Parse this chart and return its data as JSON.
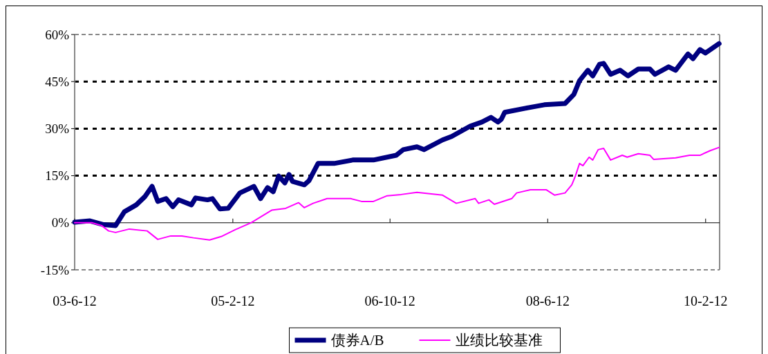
{
  "chart_data": {
    "type": "line",
    "xlim": [
      "2003-06-12",
      "2010-04-07"
    ],
    "xticks": [
      {
        "value": "2003-06-12",
        "label": "03-6-12"
      },
      {
        "value": "2005-02-12",
        "label": "05-2-12"
      },
      {
        "value": "2006-10-12",
        "label": "06-10-12"
      },
      {
        "value": "2008-06-12",
        "label": "08-6-12"
      },
      {
        "value": "2010-02-12",
        "label": "10-2-12"
      }
    ],
    "ylim": [
      -15,
      60
    ],
    "yticks": [
      {
        "value": -15,
        "label": "-15%"
      },
      {
        "value": 0,
        "label": "0%"
      },
      {
        "value": 15,
        "label": "15%"
      },
      {
        "value": 30,
        "label": "30%"
      },
      {
        "value": 45,
        "label": "45%"
      },
      {
        "value": 60,
        "label": "60%"
      }
    ],
    "grid": "y",
    "legend": "bottom",
    "line_style": "solid",
    "marker": "none",
    "series": [
      {
        "name": "债券A/B",
        "color": "#000080",
        "x": [
          "2003-06-12",
          "2003-08-10",
          "2003-10-02",
          "2003-11-17",
          "2003-12-21",
          "2004-02-05",
          "2004-03-10",
          "2004-04-06",
          "2004-04-28",
          "2004-05-30",
          "2004-06-25",
          "2004-07-17",
          "2004-09-05",
          "2004-09-21",
          "2004-11-06",
          "2004-11-25",
          "2004-12-24",
          "2005-01-25",
          "2005-03-11",
          "2005-05-04",
          "2005-05-30",
          "2005-06-26",
          "2005-07-18",
          "2005-08-08",
          "2005-09-01",
          "2005-09-17",
          "2005-09-30",
          "2005-11-15",
          "2005-12-03",
          "2006-01-07",
          "2006-03-10",
          "2006-05-21",
          "2006-08-09",
          "2006-11-05",
          "2006-12-02",
          "2007-01-24",
          "2007-02-20",
          "2007-05-03",
          "2007-06-07",
          "2007-08-18",
          "2007-10-02",
          "2007-11-06",
          "2007-12-03",
          "2007-12-16",
          "2007-12-29",
          "2008-03-18",
          "2008-05-30",
          "2008-08-18",
          "2008-09-21",
          "2008-10-13",
          "2008-11-14",
          "2008-12-03",
          "2008-12-29",
          "2009-01-14",
          "2009-02-10",
          "2009-03-19",
          "2009-04-18",
          "2009-05-28",
          "2009-07-12",
          "2009-07-31",
          "2009-09-22",
          "2009-10-19",
          "2009-12-06",
          "2009-12-25",
          "2010-01-21",
          "2010-02-11",
          "2010-04-05"
        ],
        "values": [
          0.2,
          0.6,
          -0.6,
          -0.9,
          3.5,
          5.7,
          8.4,
          11.6,
          6.8,
          7.7,
          5.1,
          7.3,
          5.7,
          7.9,
          7.3,
          7.7,
          4.4,
          4.6,
          9.5,
          11.6,
          7.7,
          11.2,
          9.9,
          14.9,
          12.7,
          15.4,
          13.2,
          12.1,
          13.4,
          18.9,
          18.9,
          20,
          20,
          21.5,
          23.3,
          24.2,
          23.3,
          26.4,
          27.5,
          30.8,
          32.1,
          33.6,
          32.1,
          33,
          35.2,
          36.5,
          37.6,
          38,
          40.9,
          45.3,
          48.6,
          46.8,
          50.5,
          50.8,
          47.3,
          48.6,
          46.8,
          49,
          49,
          47.3,
          49.7,
          48.6,
          53.8,
          52.3,
          55.2,
          54.1,
          57.1
        ]
      },
      {
        "name": "业绩比较基准",
        "color": "#ff00ff",
        "x": [
          "2003-06-12",
          "2003-08-17",
          "2003-09-24",
          "2003-10-21",
          "2003-11-17",
          "2004-01-09",
          "2004-03-18",
          "2004-04-28",
          "2004-06-17",
          "2004-07-30",
          "2004-09-13",
          "2004-11-14",
          "2004-12-29",
          "2005-02-21",
          "2005-04-23",
          "2005-07-12",
          "2005-09-04",
          "2005-10-24",
          "2005-11-15",
          "2005-12-19",
          "2006-02-11",
          "2006-05-13",
          "2006-06-24",
          "2006-08-09",
          "2006-10-01",
          "2006-11-24",
          "2007-01-24",
          "2007-05-03",
          "2007-06-25",
          "2007-09-06",
          "2007-09-19",
          "2007-10-29",
          "2007-11-19",
          "2008-01-25",
          "2008-02-13",
          "2008-04-06",
          "2008-06-07",
          "2008-07-09",
          "2008-08-18",
          "2008-09-13",
          "2008-09-27",
          "2008-10-13",
          "2008-10-26",
          "2008-11-19",
          "2008-12-03",
          "2008-12-24",
          "2009-01-14",
          "2009-02-10",
          "2009-03-27",
          "2009-04-15",
          "2009-05-28",
          "2009-07-12",
          "2009-07-26",
          "2009-10-19",
          "2009-12-12",
          "2010-01-21",
          "2010-03-02",
          "2010-04-05"
        ],
        "values": [
          0,
          0,
          -0.9,
          -2.6,
          -3.1,
          -2,
          -2.6,
          -5.3,
          -4.2,
          -4.2,
          -4.8,
          -5.5,
          -4.4,
          -2.2,
          0,
          4,
          4.6,
          6.4,
          4.8,
          6.2,
          7.7,
          7.7,
          6.8,
          6.8,
          8.6,
          9,
          9.7,
          8.8,
          6.2,
          7.7,
          6.2,
          7.3,
          5.9,
          7.7,
          9.5,
          10.5,
          10.5,
          8.8,
          9.5,
          12.1,
          14.9,
          18.9,
          18.2,
          20.9,
          20,
          23.3,
          23.7,
          20,
          21.5,
          20.9,
          22,
          21.5,
          20.2,
          20.7,
          21.5,
          21.5,
          23,
          24
        ]
      }
    ]
  }
}
